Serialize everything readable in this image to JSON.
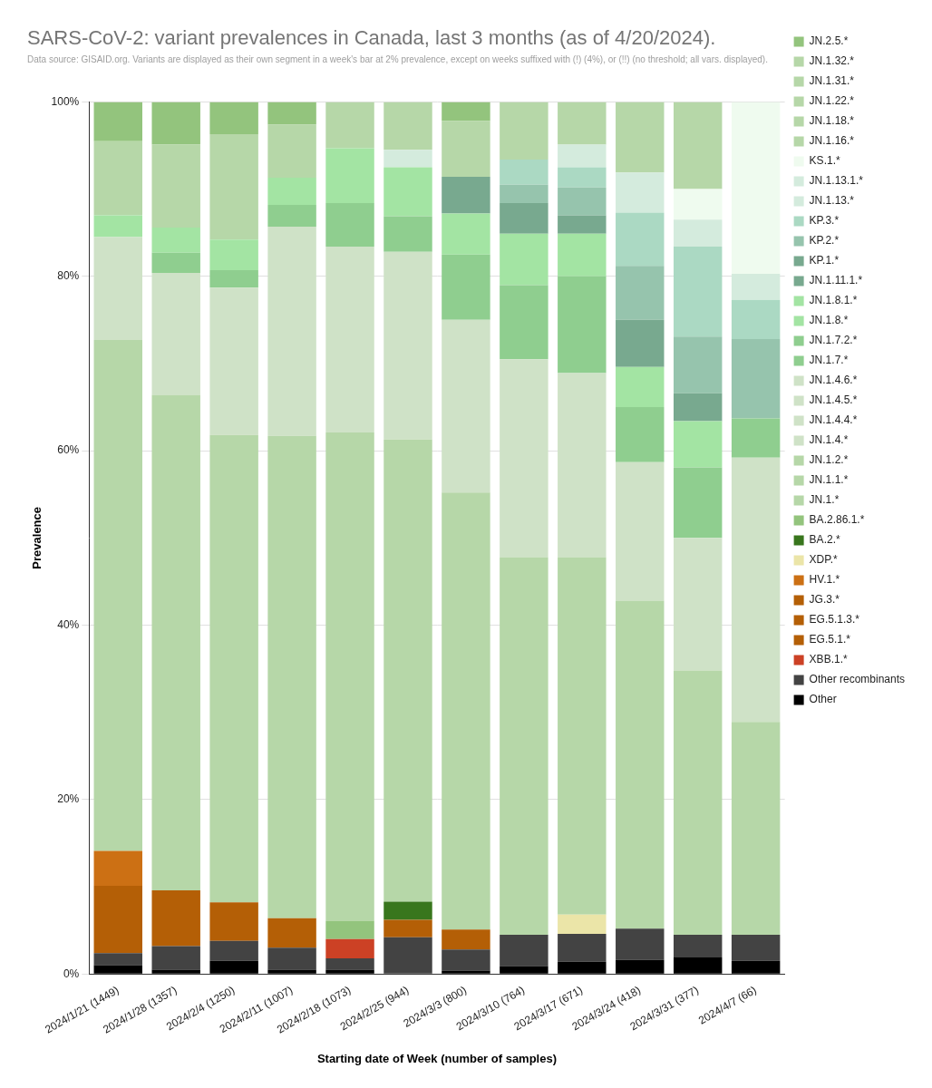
{
  "chart_data": {
    "type": "bar",
    "title": "SARS-CoV-2: variant prevalences in Canada, last 3 months (as of 4/20/2024).",
    "subtitle": "Data source: GISAID.org. Variants are displayed as their own segment in a week's bar at 2% prevalence, except on weeks suffixed with (!) (4%), or (!!) (no threshold; all vars. displayed).",
    "x_label": "Starting date of Week (number of samples)",
    "y_label": "Prevalence",
    "categories": [
      "2024/1/21 (1449)",
      "2024/1/28 (1357)",
      "2024/2/4 (1250)",
      "2024/2/11 (1007)",
      "2024/2/18 (1073)",
      "2024/2/25 (944)",
      "2024/3/3 (800)",
      "2024/3/10 (764)",
      "2024/3/17 (671)",
      "2024/3/24 (418)",
      "2024/3/31 (377)",
      "2024/4/7 (66)"
    ],
    "stacked": true,
    "grid": true,
    "legend": "right",
    "ylim": [
      0,
      100
    ],
    "yticks": [
      {
        "value": 0,
        "label": "0%"
      },
      {
        "value": 20,
        "label": "20%"
      },
      {
        "value": 40,
        "label": "40%"
      },
      {
        "value": 60,
        "label": "60%"
      },
      {
        "value": 80,
        "label": "80%"
      },
      {
        "value": 100,
        "label": "100%"
      }
    ],
    "series": [
      {
        "name": "Other",
        "color": "#000000",
        "values": [
          1.0,
          0.5,
          1.5,
          0.5,
          0.5,
          0,
          0.4,
          0.9,
          1.4,
          1.6,
          1.9,
          1.5
        ]
      },
      {
        "name": "Other recombinants",
        "color": "#434343",
        "values": [
          1.4,
          2.7,
          2.3,
          2.5,
          1.3,
          4.2,
          2.4,
          3.6,
          3.2,
          3.6,
          2.6,
          3.0
        ]
      },
      {
        "name": "XBB.1.*",
        "color": "#cc4125",
        "values": [
          0,
          0,
          0,
          0,
          2.2,
          0,
          0,
          0,
          0,
          0,
          0,
          0
        ]
      },
      {
        "name": "EG.5.1.*",
        "color": "#b45f06",
        "values": [
          7.7,
          6.4,
          4.4,
          3.4,
          0,
          2.0,
          2.3,
          0,
          0,
          0,
          0,
          0
        ]
      },
      {
        "name": "EG.5.1.3.*",
        "color": "#b45f06",
        "values": [
          0,
          0,
          0,
          0,
          0,
          0,
          0,
          0,
          0,
          0,
          0,
          0
        ]
      },
      {
        "name": "JG.3.*",
        "color": "#b45f06",
        "values": [
          0,
          0,
          0,
          0,
          0,
          0,
          0,
          0,
          0,
          0,
          0,
          0
        ]
      },
      {
        "name": "HV.1.*",
        "color": "#cc7014",
        "values": [
          4.0,
          0,
          0,
          0,
          0,
          0,
          0,
          0,
          0,
          0,
          0,
          0
        ]
      },
      {
        "name": "XDP.*",
        "color": "#ebe5a8",
        "values": [
          0,
          0,
          0,
          0,
          0,
          0,
          0,
          0,
          2.2,
          0,
          0,
          0
        ]
      },
      {
        "name": "BA.2.*",
        "color": "#38761d",
        "values": [
          0,
          0,
          0,
          0,
          0,
          2.1,
          0,
          0,
          0,
          0,
          0,
          0
        ]
      },
      {
        "name": "BA.2.86.1.*",
        "color": "#93c47d",
        "values": [
          0,
          0,
          0,
          0,
          2.1,
          0,
          0,
          0,
          0,
          0,
          0,
          0
        ]
      },
      {
        "name": "JN.1.*",
        "color": "#b6d7a8",
        "values": [
          58.6,
          56.8,
          53.6,
          55.3,
          56.0,
          53.0,
          50.1,
          43.3,
          41.0,
          37.6,
          30.3,
          24.4
        ]
      },
      {
        "name": "JN.1.1.*",
        "color": "#b6d7a8",
        "values": [
          0,
          0,
          0,
          0,
          0,
          0,
          0,
          0,
          0,
          0,
          0,
          0
        ]
      },
      {
        "name": "JN.1.2.*",
        "color": "#b6d7a8",
        "values": [
          0,
          0,
          0,
          0,
          0,
          0,
          0,
          0,
          0,
          0,
          0,
          0
        ]
      },
      {
        "name": "JN.1.4.*",
        "color": "#cfe2c7",
        "values": [
          11.8,
          14.0,
          16.9,
          24.0,
          21.3,
          21.5,
          19.8,
          22.7,
          21.1,
          15.9,
          15.2,
          30.3
        ]
      },
      {
        "name": "JN.1.4.4.*",
        "color": "#cfe2c7",
        "values": [
          0,
          0,
          0,
          0,
          0,
          0,
          0,
          0,
          0,
          0,
          0,
          0
        ]
      },
      {
        "name": "JN.1.4.5.*",
        "color": "#cfe2c7",
        "values": [
          0,
          0,
          0,
          0,
          0,
          0,
          0,
          0,
          0,
          0,
          0,
          0
        ]
      },
      {
        "name": "JN.1.4.6.*",
        "color": "#cfe2c7",
        "values": [
          0,
          0,
          0,
          0,
          0,
          0,
          0,
          0,
          0,
          0,
          0,
          0
        ]
      },
      {
        "name": "JN.1.7.*",
        "color": "#8fce8f",
        "values": [
          0,
          2.3,
          2.0,
          2.5,
          5.0,
          4.1,
          7.5,
          8.5,
          11.1,
          6.3,
          8.1,
          4.5
        ]
      },
      {
        "name": "JN.1.7.2.*",
        "color": "#8fce8f",
        "values": [
          0,
          0,
          0,
          0,
          0,
          0,
          0,
          0,
          0,
          0,
          0,
          0
        ]
      },
      {
        "name": "JN.1.8.*",
        "color": "#a3e4a3",
        "values": [
          2.5,
          2.9,
          3.5,
          3.1,
          6.3,
          5.6,
          4.7,
          5.9,
          4.9,
          4.6,
          5.3,
          0
        ]
      },
      {
        "name": "JN.1.8.1.*",
        "color": "#a3e4a3",
        "values": [
          0,
          0,
          0,
          0,
          0,
          0,
          0,
          0,
          0,
          0,
          0,
          0
        ]
      },
      {
        "name": "JN.1.11.1.*",
        "color": "#78a98f",
        "values": [
          0,
          0,
          0,
          0,
          0,
          0,
          4.2,
          3.5,
          2.1,
          5.4,
          3.2,
          0
        ]
      },
      {
        "name": "KP.1.*",
        "color": "#78a98f",
        "values": [
          0,
          0,
          0,
          0,
          0,
          0,
          0,
          0,
          0,
          0,
          0,
          0
        ]
      },
      {
        "name": "KP.2.*",
        "color": "#96c4ad",
        "values": [
          0,
          0,
          0,
          0,
          0,
          0,
          0,
          2.1,
          3.2,
          6.2,
          6.5,
          9.1
        ]
      },
      {
        "name": "KP.3.*",
        "color": "#abd9c3",
        "values": [
          0,
          0,
          0,
          0,
          0,
          0,
          0,
          2.9,
          2.3,
          6.1,
          10.3,
          4.5
        ]
      },
      {
        "name": "JN.1.13.*",
        "color": "#d4ebdd",
        "values": [
          0,
          0,
          0,
          0,
          0,
          2.0,
          0,
          0,
          2.6,
          4.6,
          3.1,
          3.0
        ]
      },
      {
        "name": "JN.1.13.1.*",
        "color": "#d4ebdd",
        "values": [
          0,
          0,
          0,
          0,
          0,
          0,
          0,
          0,
          0,
          0,
          0,
          0
        ]
      },
      {
        "name": "KS.1.*",
        "color": "#effbef",
        "values": [
          0,
          0,
          0,
          0,
          0,
          0,
          0,
          0,
          0,
          0,
          3.5,
          19.7
        ]
      },
      {
        "name": "JN.1.16.*",
        "color": "#b6d7a8",
        "values": [
          0,
          0,
          0,
          0,
          0,
          0,
          0,
          0,
          0,
          0,
          0,
          0
        ]
      },
      {
        "name": "JN.1.18.*",
        "color": "#b6d7a8",
        "values": [
          8.5,
          9.5,
          12.1,
          6.1,
          5.3,
          5.5,
          6.4,
          6.6,
          4.9,
          8.1,
          10.0,
          0
        ]
      },
      {
        "name": "JN.1.22.*",
        "color": "#b6d7a8",
        "values": [
          0,
          0,
          0,
          0,
          0,
          0,
          0,
          0,
          0,
          0,
          0,
          0
        ]
      },
      {
        "name": "JN.1.31.*",
        "color": "#b6d7a8",
        "values": [
          0,
          0,
          0,
          0,
          0,
          0,
          0,
          0,
          0,
          0,
          0,
          0
        ]
      },
      {
        "name": "JN.1.32.*",
        "color": "#b6d7a8",
        "values": [
          0,
          0,
          0,
          0,
          0,
          0,
          0,
          0,
          0,
          0,
          0,
          0
        ]
      },
      {
        "name": "JN.2.5.*",
        "color": "#93c47d",
        "values": [
          4.5,
          4.9,
          3.7,
          2.6,
          0,
          0,
          2.2,
          0,
          0,
          0,
          0,
          0
        ]
      }
    ]
  }
}
